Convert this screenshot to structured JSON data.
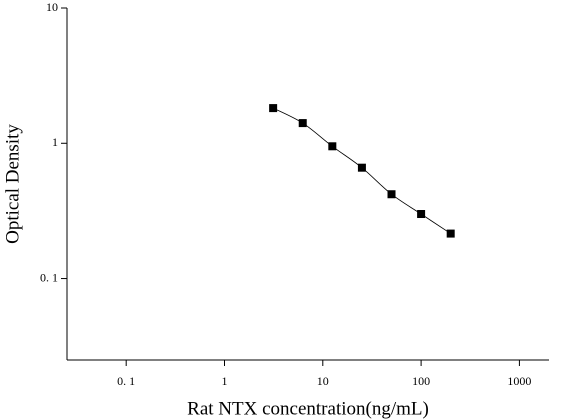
{
  "chart_data": {
    "type": "scatter",
    "x_label": "Rat NTX concentration(ng/mL)",
    "y_label": "Optical Density",
    "x": [
      3.125,
      6.25,
      12.5,
      25,
      50,
      100,
      200
    ],
    "series": [
      {
        "color": "#000000",
        "values": [
          1.82,
          1.41,
          0.95,
          0.66,
          0.42,
          0.3,
          0.215
        ]
      }
    ],
    "fit_line": true,
    "xscale": "log",
    "yscale": "log",
    "xlim": [
      0.025,
      2000
    ],
    "ylim": [
      0.025,
      10
    ],
    "xticks": [
      {
        "value": 0.1,
        "label": "0. 1"
      },
      1,
      10,
      100,
      1000
    ],
    "yticks": [
      {
        "value": 0.1,
        "label": "0. 1"
      },
      1,
      10
    ]
  }
}
